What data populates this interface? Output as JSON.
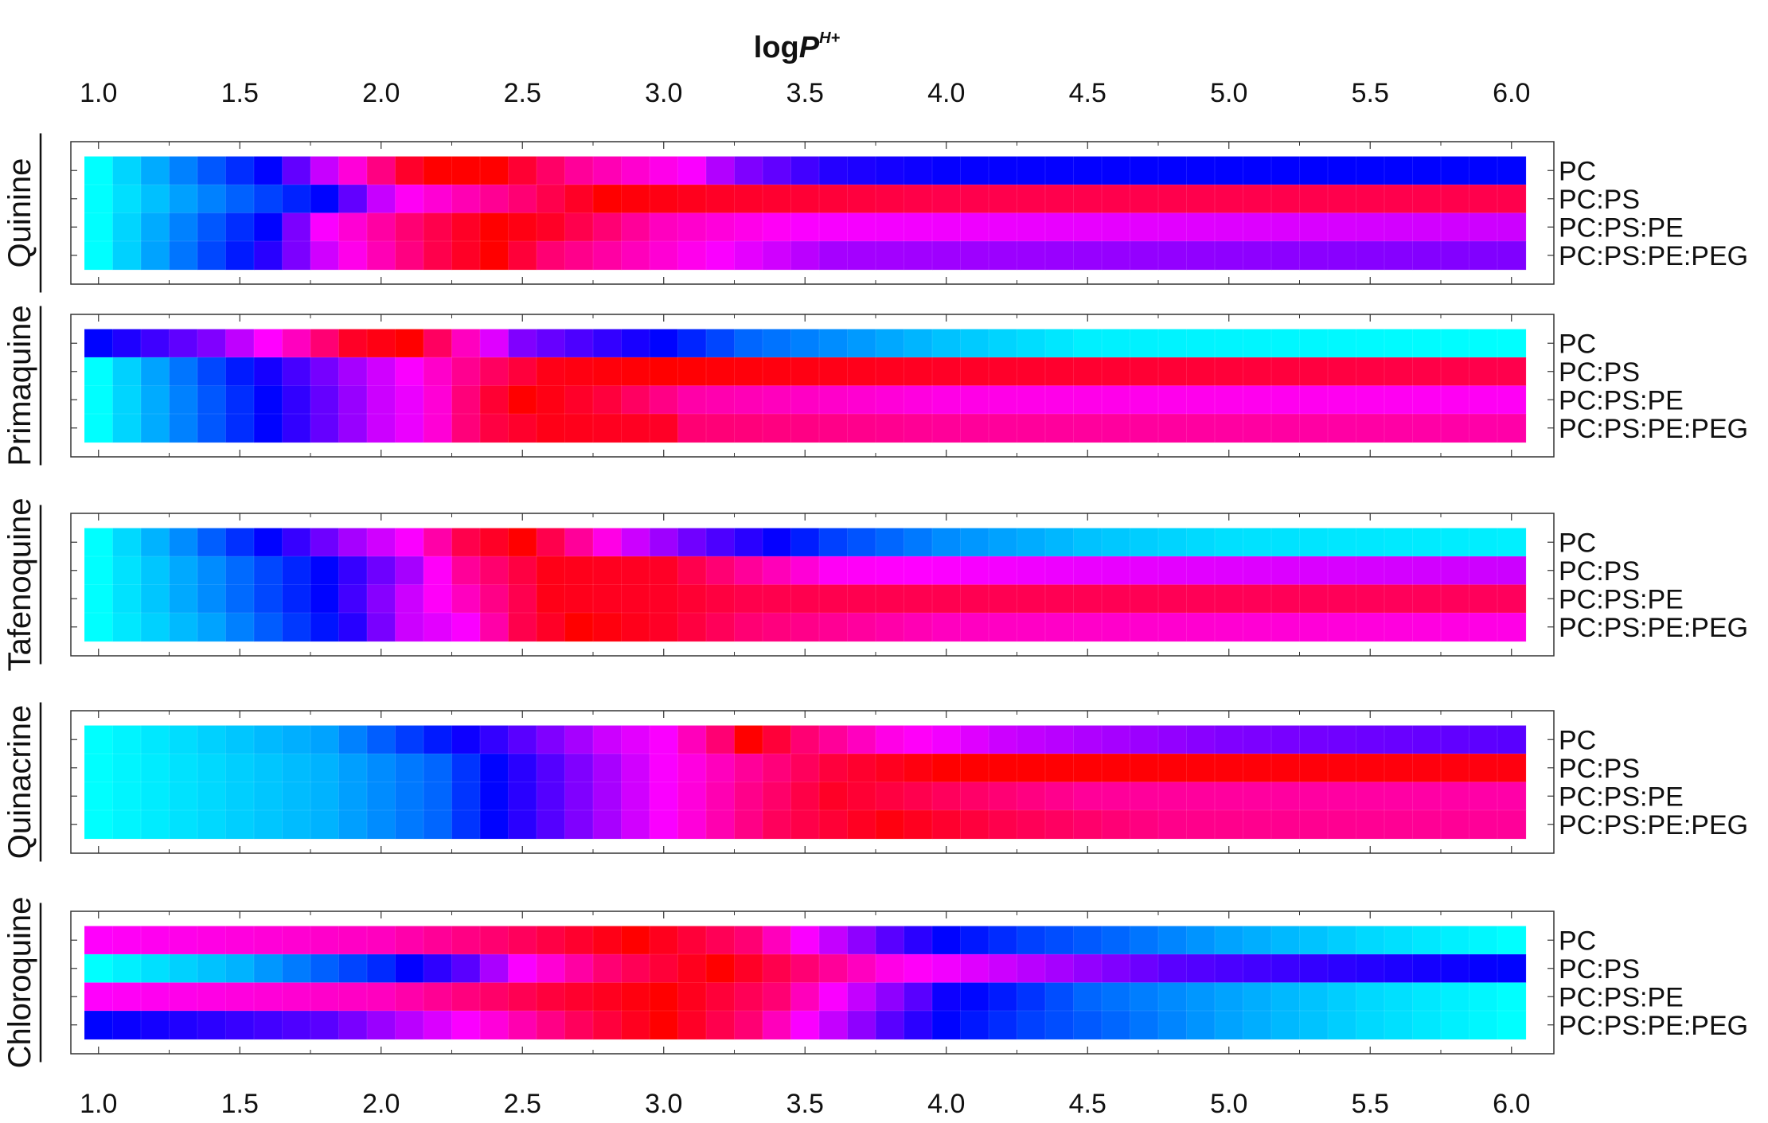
{
  "chart_data": {
    "type": "heatmap",
    "title": "logP",
    "title_superscript": "H+",
    "x_ticks": [
      "1.0",
      "1.5",
      "2.0",
      "2.5",
      "3.0",
      "3.5",
      "4.0",
      "4.5",
      "5.0",
      "5.5",
      "6.0"
    ],
    "xlim": [
      1.0,
      6.0
    ],
    "x_step": 0.1,
    "row_labels": [
      "PC",
      "PC:PS",
      "PC:PS:PE",
      "PC:PS:PE:PEG"
    ],
    "colormap": {
      "name": "cyan-blue-magenta-red",
      "stops": [
        "#00ffff",
        "#0000ff",
        "#ff00ff",
        "#ff0000"
      ]
    },
    "panels": [
      {
        "drug": "Quinine",
        "rows": [
          {
            "label": "PC",
            "keypoints": [
              [
                1.0,
                0.0
              ],
              [
                1.6,
                0.33
              ],
              [
                1.85,
                0.66
              ],
              [
                2.15,
                1.0
              ],
              [
                2.4,
                1.0
              ],
              [
                2.7,
                0.8
              ],
              [
                3.1,
                0.66
              ],
              [
                3.25,
                0.52
              ],
              [
                3.6,
                0.38
              ],
              [
                4.0,
                0.34
              ],
              [
                6.0,
                0.33
              ]
            ]
          },
          {
            "label": "PC:PS",
            "keypoints": [
              [
                1.0,
                0.0
              ],
              [
                1.8,
                0.33
              ],
              [
                2.05,
                0.66
              ],
              [
                2.5,
                0.85
              ],
              [
                2.8,
                1.0
              ],
              [
                3.2,
                0.95
              ],
              [
                4.0,
                0.9
              ],
              [
                6.0,
                0.9
              ]
            ]
          },
          {
            "label": "PC:PS:PE",
            "keypoints": [
              [
                1.0,
                0.0
              ],
              [
                1.6,
                0.33
              ],
              [
                1.8,
                0.66
              ],
              [
                2.1,
                0.85
              ],
              [
                2.4,
                1.0
              ],
              [
                2.6,
                0.95
              ],
              [
                3.0,
                0.75
              ],
              [
                3.5,
                0.66
              ],
              [
                6.0,
                0.6
              ]
            ]
          },
          {
            "label": "PC:PS:PE:PEG",
            "keypoints": [
              [
                1.0,
                0.0
              ],
              [
                1.55,
                0.33
              ],
              [
                1.85,
                0.66
              ],
              [
                2.2,
                0.9
              ],
              [
                2.4,
                1.0
              ],
              [
                2.6,
                0.85
              ],
              [
                3.2,
                0.66
              ],
              [
                3.6,
                0.55
              ],
              [
                6.0,
                0.5
              ]
            ]
          }
        ]
      },
      {
        "drug": "Primaquine",
        "rows": [
          {
            "label": "PC",
            "keypoints": [
              [
                1.0,
                0.33
              ],
              [
                1.4,
                0.5
              ],
              [
                1.7,
                0.75
              ],
              [
                1.9,
                0.95
              ],
              [
                2.1,
                1.0
              ],
              [
                2.3,
                0.75
              ],
              [
                2.5,
                0.5
              ],
              [
                2.8,
                0.4
              ],
              [
                3.0,
                0.33
              ],
              [
                3.3,
                0.2
              ],
              [
                4.0,
                0.08
              ],
              [
                4.5,
                0.02
              ],
              [
                6.0,
                0.0
              ]
            ]
          },
          {
            "label": "PC:PS",
            "keypoints": [
              [
                1.0,
                0.0
              ],
              [
                1.55,
                0.33
              ],
              [
                1.9,
                0.55
              ],
              [
                2.1,
                0.66
              ],
              [
                2.35,
                0.85
              ],
              [
                2.6,
                0.97
              ],
              [
                3.0,
                1.0
              ],
              [
                4.0,
                0.95
              ],
              [
                6.0,
                0.9
              ]
            ]
          },
          {
            "label": "PC:PS:PE",
            "keypoints": [
              [
                1.0,
                0.0
              ],
              [
                1.6,
                0.33
              ],
              [
                2.0,
                0.6
              ],
              [
                2.15,
                0.66
              ],
              [
                2.35,
                0.9
              ],
              [
                2.5,
                1.0
              ],
              [
                2.8,
                0.92
              ],
              [
                3.1,
                0.78
              ],
              [
                4.0,
                0.7
              ],
              [
                6.0,
                0.68
              ]
            ]
          },
          {
            "label": "PC:PS:PE:PEG",
            "keypoints": [
              [
                1.0,
                0.0
              ],
              [
                1.6,
                0.33
              ],
              [
                2.0,
                0.6
              ],
              [
                2.15,
                0.66
              ],
              [
                2.35,
                0.9
              ],
              [
                2.6,
                0.97
              ],
              [
                3.0,
                0.95
              ],
              [
                3.1,
                0.85
              ],
              [
                4.0,
                0.8
              ],
              [
                6.0,
                0.78
              ]
            ]
          }
        ]
      },
      {
        "drug": "Tafenoquine",
        "rows": [
          {
            "label": "PC",
            "keypoints": [
              [
                1.0,
                0.0
              ],
              [
                1.3,
                0.15
              ],
              [
                1.6,
                0.33
              ],
              [
                1.9,
                0.55
              ],
              [
                2.1,
                0.66
              ],
              [
                2.3,
                0.9
              ],
              [
                2.5,
                1.0
              ],
              [
                2.7,
                0.8
              ],
              [
                2.9,
                0.6
              ],
              [
                3.1,
                0.48
              ],
              [
                3.4,
                0.34
              ],
              [
                3.6,
                0.25
              ],
              [
                4.0,
                0.15
              ],
              [
                4.5,
                0.08
              ],
              [
                5.0,
                0.04
              ],
              [
                6.0,
                0.02
              ]
            ]
          },
          {
            "label": "PC:PS",
            "keypoints": [
              [
                1.0,
                0.0
              ],
              [
                1.4,
                0.15
              ],
              [
                1.8,
                0.33
              ],
              [
                2.1,
                0.55
              ],
              [
                2.3,
                0.8
              ],
              [
                2.6,
                0.97
              ],
              [
                3.0,
                0.95
              ],
              [
                3.3,
                0.8
              ],
              [
                3.6,
                0.68
              ],
              [
                4.5,
                0.64
              ],
              [
                6.0,
                0.6
              ]
            ]
          },
          {
            "label": "PC:PS:PE",
            "keypoints": [
              [
                1.0,
                0.0
              ],
              [
                1.4,
                0.15
              ],
              [
                1.8,
                0.33
              ],
              [
                2.1,
                0.6
              ],
              [
                2.3,
                0.75
              ],
              [
                2.6,
                0.97
              ],
              [
                3.0,
                0.95
              ],
              [
                3.3,
                0.9
              ],
              [
                6.0,
                0.88
              ]
            ]
          },
          {
            "label": "PC:PS:PE:PEG",
            "keypoints": [
              [
                1.0,
                0.0
              ],
              [
                1.4,
                0.12
              ],
              [
                1.85,
                0.33
              ],
              [
                2.1,
                0.6
              ],
              [
                2.3,
                0.66
              ],
              [
                2.5,
                0.9
              ],
              [
                2.7,
                1.0
              ],
              [
                3.0,
                0.95
              ],
              [
                3.3,
                0.85
              ],
              [
                4.0,
                0.75
              ],
              [
                6.0,
                0.7
              ]
            ]
          }
        ]
      },
      {
        "drug": "Quinacrine",
        "rows": [
          {
            "label": "PC",
            "keypoints": [
              [
                1.0,
                0.0
              ],
              [
                1.8,
                0.12
              ],
              [
                2.2,
                0.3
              ],
              [
                2.5,
                0.45
              ],
              [
                2.8,
                0.6
              ],
              [
                3.0,
                0.66
              ],
              [
                3.2,
                0.85
              ],
              [
                3.3,
                1.0
              ],
              [
                3.5,
                0.85
              ],
              [
                3.8,
                0.7
              ],
              [
                4.2,
                0.6
              ],
              [
                5.0,
                0.5
              ],
              [
                6.0,
                0.45
              ]
            ]
          },
          {
            "label": "PC:PS",
            "keypoints": [
              [
                1.0,
                0.0
              ],
              [
                1.8,
                0.1
              ],
              [
                2.2,
                0.2
              ],
              [
                2.4,
                0.33
              ],
              [
                2.7,
                0.5
              ],
              [
                3.0,
                0.66
              ],
              [
                3.3,
                0.8
              ],
              [
                3.6,
                0.92
              ],
              [
                4.0,
                1.0
              ],
              [
                6.0,
                0.98
              ]
            ]
          },
          {
            "label": "PC:PS:PE",
            "keypoints": [
              [
                1.0,
                0.0
              ],
              [
                1.8,
                0.1
              ],
              [
                2.2,
                0.2
              ],
              [
                2.4,
                0.33
              ],
              [
                2.7,
                0.5
              ],
              [
                3.0,
                0.66
              ],
              [
                3.3,
                0.82
              ],
              [
                3.6,
                0.95
              ],
              [
                4.0,
                0.88
              ],
              [
                4.5,
                0.8
              ],
              [
                6.0,
                0.78
              ]
            ]
          },
          {
            "label": "PC:PS:PE:PEG",
            "keypoints": [
              [
                1.0,
                0.0
              ],
              [
                1.8,
                0.1
              ],
              [
                2.2,
                0.2
              ],
              [
                2.4,
                0.33
              ],
              [
                2.7,
                0.5
              ],
              [
                3.0,
                0.66
              ],
              [
                3.4,
                0.88
              ],
              [
                3.8,
                0.98
              ],
              [
                4.2,
                0.9
              ],
              [
                4.8,
                0.82
              ],
              [
                6.0,
                0.8
              ]
            ]
          }
        ]
      },
      {
        "drug": "Chloroquine",
        "rows": [
          {
            "label": "PC",
            "keypoints": [
              [
                1.0,
                0.67
              ],
              [
                2.0,
                0.75
              ],
              [
                2.5,
                0.88
              ],
              [
                2.9,
                1.0
              ],
              [
                3.3,
                0.85
              ],
              [
                3.5,
                0.66
              ],
              [
                3.8,
                0.45
              ],
              [
                4.0,
                0.33
              ],
              [
                4.3,
                0.25
              ],
              [
                4.6,
                0.2
              ],
              [
                5.0,
                0.12
              ],
              [
                5.5,
                0.05
              ],
              [
                6.0,
                0.0
              ]
            ]
          },
          {
            "label": "PC:PS",
            "keypoints": [
              [
                1.0,
                0.0
              ],
              [
                1.5,
                0.1
              ],
              [
                2.0,
                0.28
              ],
              [
                2.3,
                0.45
              ],
              [
                2.5,
                0.66
              ],
              [
                2.8,
                0.85
              ],
              [
                3.2,
                1.0
              ],
              [
                3.5,
                0.85
              ],
              [
                3.8,
                0.7
              ],
              [
                4.2,
                0.6
              ],
              [
                4.8,
                0.45
              ],
              [
                5.5,
                0.38
              ],
              [
                6.0,
                0.33
              ]
            ]
          },
          {
            "label": "PC:PS:PE",
            "keypoints": [
              [
                1.0,
                0.67
              ],
              [
                2.0,
                0.75
              ],
              [
                2.6,
                0.92
              ],
              [
                3.0,
                1.0
              ],
              [
                3.4,
                0.85
              ],
              [
                3.6,
                0.66
              ],
              [
                3.9,
                0.45
              ],
              [
                4.0,
                0.35
              ],
              [
                4.2,
                0.3
              ],
              [
                4.5,
                0.2
              ],
              [
                5.0,
                0.12
              ],
              [
                5.5,
                0.05
              ],
              [
                6.0,
                0.0
              ]
            ]
          },
          {
            "label": "PC:PS:PE:PEG",
            "keypoints": [
              [
                1.0,
                0.33
              ],
              [
                1.8,
                0.45
              ],
              [
                2.3,
                0.66
              ],
              [
                2.7,
                0.88
              ],
              [
                3.0,
                1.0
              ],
              [
                3.3,
                0.85
              ],
              [
                3.5,
                0.66
              ],
              [
                3.8,
                0.45
              ],
              [
                4.0,
                0.33
              ],
              [
                4.3,
                0.25
              ],
              [
                4.6,
                0.2
              ],
              [
                5.0,
                0.12
              ],
              [
                5.5,
                0.05
              ],
              [
                6.0,
                0.0
              ]
            ]
          }
        ]
      }
    ]
  }
}
